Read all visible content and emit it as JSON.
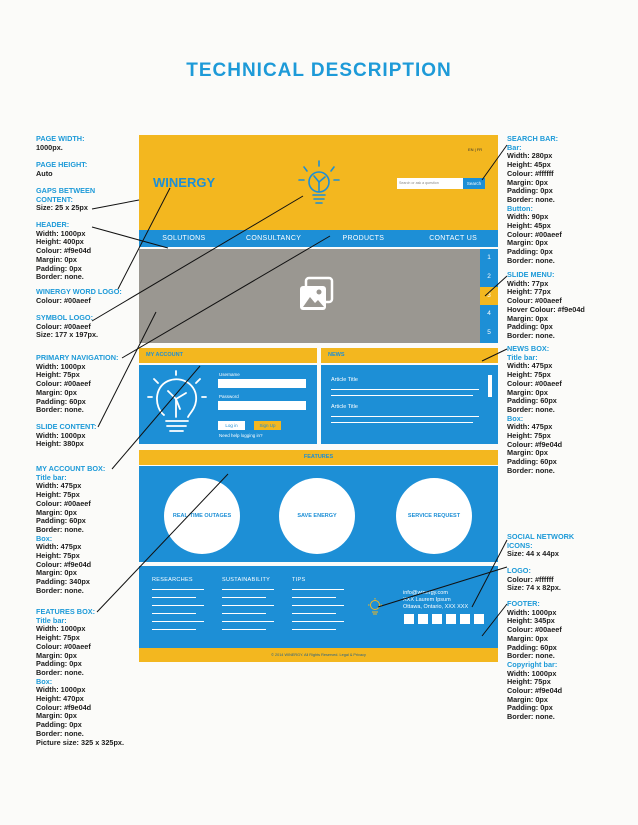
{
  "title": "TECHNICAL DESCRIPTION",
  "left_specs": [
    {
      "key": "page_width",
      "heading": [
        "PAGE WIDTH:"
      ],
      "lines": [
        "1000px."
      ]
    },
    {
      "key": "page_height",
      "heading": [
        "PAGE HEIGHT:"
      ],
      "lines": [
        "Auto"
      ]
    },
    {
      "key": "gaps",
      "heading": [
        "GAPS BETWEEN",
        "CONTENT:"
      ],
      "lines": [
        "Size: 25 x 25px"
      ]
    },
    {
      "key": "header",
      "heading": [
        "HEADER:"
      ],
      "lines": [
        "Width: 1000px",
        "Height: 400px",
        "Colour: #f9e04d",
        "Margin: 0px",
        "Padding: 0px",
        "Border: none."
      ]
    },
    {
      "key": "word_logo",
      "heading": [
        "WINERGY WORD LOGO:"
      ],
      "lines": [
        "Colour: #00aeef"
      ]
    },
    {
      "key": "symbol_logo",
      "heading": [
        "SYMBOL LOGO:"
      ],
      "lines": [
        "Colour: #00aeef",
        "Size: 177 x 197px."
      ]
    },
    {
      "key": "primary_nav",
      "heading": [
        "PRIMARY NAVIGATION:"
      ],
      "lines": [
        "Width: 1000px",
        "Height: 75px",
        "Colour: #00aeef",
        "Margin: 0px",
        "Padding: 60px",
        "Border: none."
      ]
    },
    {
      "key": "slide_content",
      "heading": [
        "SLIDE CONTENT:"
      ],
      "lines": [
        "Width: 1000px",
        "Height: 380px"
      ]
    },
    {
      "key": "account_box",
      "heading": [
        "MY ACCOUNT BOX:",
        "Title bar:"
      ],
      "lines": [
        "Width: 475px",
        "Height: 75px",
        "Colour: #00aeef",
        "Margin: 0px",
        "Padding: 60px",
        "Border: none."
      ],
      "sub": "Box:",
      "lines2": [
        "Width: 475px",
        "Height: 75px",
        "Colour: #f9e04d",
        "Margin: 0px",
        "Padding: 340px",
        "Border: none."
      ]
    },
    {
      "key": "features_box",
      "heading": [
        "FEATURES BOX:",
        "Title bar:"
      ],
      "lines": [
        "Width: 1000px",
        "Height: 75px",
        "Colour: #00aeef",
        "Margin: 0px",
        "Padding: 0px",
        "Border: none."
      ],
      "sub": "Box:",
      "lines2": [
        "Width: 1000px",
        "Height: 470px",
        "Colour: #f9e04d",
        "Margin: 0px",
        "Padding: 0px",
        "Border: none.",
        "Picture size: 325 x 325px."
      ]
    }
  ],
  "right_specs": [
    {
      "key": "search_bar",
      "heading": [
        "SEARCH BAR:",
        "Bar:"
      ],
      "lines": [
        "Width: 280px",
        "Height: 45px",
        "Colour: #ffffff",
        "Margin: 0px",
        "Padding: 0px",
        "Border: none."
      ],
      "sub": "Button:",
      "lines2": [
        "Width: 90px",
        "Height: 45px",
        "Colour: #00aeef",
        "Margin: 0px",
        "Padding: 0px",
        "Border: none."
      ]
    },
    {
      "key": "slide_menu",
      "heading": [
        "SLIDE MENU:"
      ],
      "lines": [
        "Width: 77px",
        "Height: 77px",
        "Colour: #00aeef",
        "Hover Colour: #f9e04d",
        "Margin: 0px",
        "Padding: 0px",
        "Border: none."
      ]
    },
    {
      "key": "news_box",
      "heading": [
        "NEWS BOX:",
        "Title bar:"
      ],
      "lines": [
        "Width: 475px",
        "Height: 75px",
        "Colour: #00aeef",
        "Margin: 0px",
        "Padding: 60px",
        "Border: none."
      ],
      "sub": "Box:",
      "lines2": [
        "Width: 475px",
        "Height: 75px",
        "Colour: #f9e04d",
        "Margin: 0px",
        "Padding: 60px",
        "Border: none."
      ]
    },
    {
      "key": "social",
      "heading": [
        "SOCIAL NETWORK",
        "ICONS:"
      ],
      "lines": [
        "Size: 44 x 44px"
      ]
    },
    {
      "key": "logo",
      "heading": [
        "LOGO:"
      ],
      "lines": [
        "Colour: #ffffff",
        "Size: 74 x 82px."
      ]
    },
    {
      "key": "footer",
      "heading": [
        "FOOTER:"
      ],
      "lines": [
        "Width: 1000px",
        "Height: 345px",
        "Colour: #00aeef",
        "Margin: 0px",
        "Padding: 60px",
        "Border: none."
      ],
      "sub": "Copyright bar:",
      "lines2": [
        "Width: 1000px",
        "Height: 75px",
        "Colour: #f9e04d",
        "Margin: 0px",
        "Padding: 0px",
        "Border: none."
      ]
    }
  ],
  "mockup": {
    "lang": "EN | FR",
    "brand": "WINERGY",
    "search_placeholder": "Search or ask a question",
    "search_button": "Search",
    "nav": [
      "SOLUTIONS",
      "CONSULTANCY",
      "PRODUCTS",
      "CONTACT US"
    ],
    "slide_menu": [
      "1",
      "2",
      "3",
      "4",
      "5"
    ],
    "account_title": "MY ACCOUNT",
    "username_label": "Username",
    "password_label": "Password",
    "login_button": "Log in",
    "signup_button": "Sign Up",
    "help_link": "Need help logging in?",
    "news_title": "NEWS",
    "articles": [
      "Article Title",
      "Article Title"
    ],
    "features_title": "FEATURES",
    "features": [
      "REAL-TIME OUTAGES",
      "SAVE ENERGY",
      "SERVICE REQUEST"
    ],
    "footer_cols": [
      "RESEARCHES",
      "SUSTAINABILITY",
      "TIPS"
    ],
    "contact": [
      "info@winergy.com",
      "XXX Laurem Ipsum",
      "Ottawa, Ontario, XXX XXX"
    ],
    "copyright": "© 2014 WINERGY. All Rights Reserved. Legal & Privacy"
  },
  "colors": {
    "blue": "#1d8fd6",
    "yellow": "#f3b71f",
    "title_blue": "#1d9ad8"
  }
}
